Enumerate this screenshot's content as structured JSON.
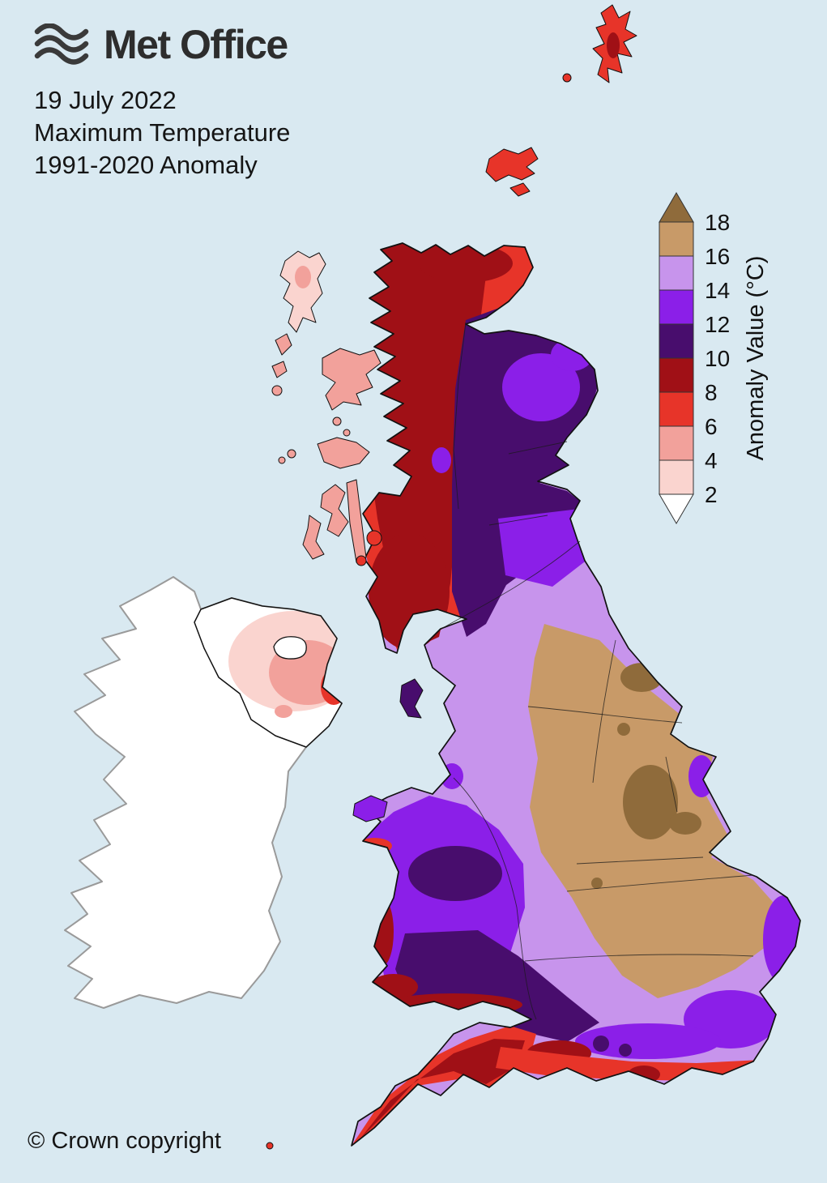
{
  "header": {
    "logo_label": "Met Office",
    "date": "19 July 2022",
    "title": "Maximum Temperature",
    "subtitle": "1991-2020 Anomaly"
  },
  "legend": {
    "title": "Anomaly Value (°C)",
    "ticks": [
      "18",
      "16",
      "14",
      "12",
      "10",
      "8",
      "6",
      "4",
      "2"
    ],
    "segment_colors": [
      "#c89a68",
      "#c794ec",
      "#8b1fe8",
      "#480d6d",
      "#a01016",
      "#e73429",
      "#f2a19b",
      "#fad4cf"
    ],
    "arrow_top_color": "#8f6b3b",
    "arrow_bottom_color": "#ffffff"
  },
  "footer": {
    "copyright": "© Crown copyright"
  },
  "palette": {
    "sea": "#d9e9f1",
    "ireland": "#ffffff",
    "ireland_outline": "#9a9a9a",
    "outline": "#111111",
    "c2": "#ffffff",
    "c4": "#fad4cf",
    "c6": "#f2a19b",
    "c8": "#e73429",
    "c10": "#a01016",
    "c12": "#480d6d",
    "c14": "#8b1fe8",
    "c16": "#c794ec",
    "c18": "#c89a68",
    "gt18": "#8f6b3b"
  }
}
